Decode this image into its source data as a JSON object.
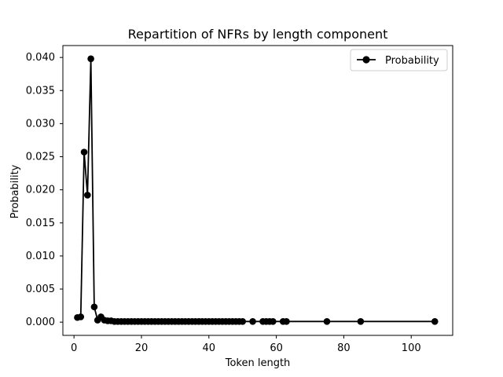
{
  "chart_data": {
    "type": "line",
    "title": "Repartition of NFRs by length component",
    "xlabel": "Token length",
    "ylabel": "Probability",
    "xlim": [
      -3.3,
      112.3
    ],
    "ylim": [
      -0.002,
      0.0418
    ],
    "xticks": [
      0,
      20,
      40,
      60,
      80,
      100
    ],
    "yticks": [
      0.0,
      0.005,
      0.01,
      0.015,
      0.02,
      0.025,
      0.03,
      0.035,
      0.04
    ],
    "xtick_labels": [
      "0",
      "20",
      "40",
      "60",
      "80",
      "100"
    ],
    "ytick_labels": [
      "0.000",
      "0.005",
      "0.010",
      "0.015",
      "0.020",
      "0.025",
      "0.030",
      "0.035",
      "0.040"
    ],
    "grid": false,
    "legend_position": "top-right",
    "series": [
      {
        "name": "Probability",
        "color": "#000000",
        "marker": "circle",
        "x": [
          1,
          2,
          3,
          4,
          5,
          6,
          7,
          8,
          9,
          10,
          11,
          12,
          13,
          14,
          15,
          16,
          17,
          18,
          19,
          20,
          21,
          22,
          23,
          24,
          25,
          26,
          27,
          28,
          29,
          30,
          31,
          32,
          33,
          34,
          35,
          36,
          37,
          38,
          39,
          40,
          41,
          42,
          43,
          44,
          45,
          46,
          47,
          48,
          49,
          50,
          53,
          56,
          57,
          58,
          59,
          62,
          63,
          75,
          85,
          107
        ],
        "y": [
          0.0007,
          0.0008,
          0.0257,
          0.0192,
          0.0398,
          0.0023,
          0.0003,
          0.0008,
          0.0003,
          0.0002,
          0.0002,
          0.0001,
          0.0001,
          0.0001,
          0.0001,
          0.0001,
          0.0001,
          0.0001,
          0.0001,
          0.0001,
          0.0001,
          0.0001,
          0.0001,
          0.0001,
          0.0001,
          0.0001,
          0.0001,
          0.0001,
          0.0001,
          0.0001,
          0.0001,
          0.0001,
          0.0001,
          0.0001,
          0.0001,
          0.0001,
          0.0001,
          0.0001,
          0.0001,
          0.0001,
          0.0001,
          0.0001,
          0.0001,
          0.0001,
          0.0001,
          0.0001,
          0.0001,
          0.0001,
          0.0001,
          0.0001,
          0.0001,
          0.0001,
          0.0001,
          0.0001,
          0.0001,
          0.0001,
          0.0001,
          0.0001,
          0.0001,
          0.0001
        ]
      }
    ]
  }
}
